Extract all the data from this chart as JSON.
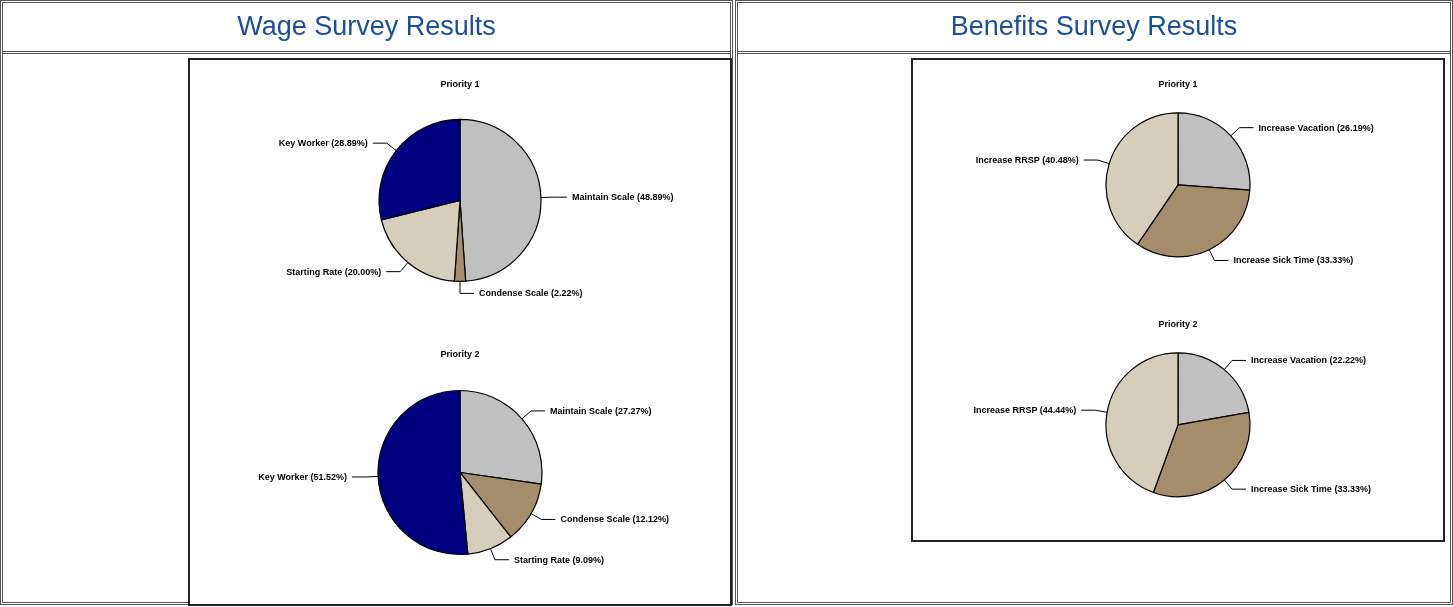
{
  "chart_data": [
    {
      "type": "pie",
      "title": "Wage Survey Results",
      "subtitle": "Priority 1",
      "categories": [
        "Maintain Scale",
        "Condense Scale",
        "Starting Rate",
        "Key Worker"
      ],
      "values": [
        48.89,
        2.22,
        20.0,
        28.89
      ],
      "colors": [
        "#c0c0c0",
        "#a38d6b",
        "#d6cdbb",
        "#000080"
      ],
      "value_labels": [
        "(48.89%)",
        "(2.22%)",
        "(20.00%)",
        "(28.89%)"
      ]
    },
    {
      "type": "pie",
      "subtitle": "Priority 2",
      "categories": [
        "Maintain Scale",
        "Condense Scale",
        "Starting Rate",
        "Key Worker"
      ],
      "values": [
        27.27,
        12.12,
        9.09,
        51.52
      ],
      "colors": [
        "#c0c0c0",
        "#a38d6b",
        "#d6cdbb",
        "#000080"
      ],
      "value_labels": [
        "(27.27%)",
        "(12.12%)",
        "(9.09%)",
        "(51.52%)"
      ]
    },
    {
      "type": "pie",
      "title": "Benefits Survey Results",
      "subtitle": "Priority 1",
      "categories": [
        "Increase Vacation",
        "Increase Sick Time",
        "Increase RRSP"
      ],
      "values": [
        26.19,
        33.33,
        40.48
      ],
      "colors": [
        "#c0c0c0",
        "#a38d6b",
        "#d6cdbb"
      ],
      "value_labels": [
        "(26.19%)",
        "(33.33%)",
        "(40.48%)"
      ]
    },
    {
      "type": "pie",
      "subtitle": "Priority 2",
      "categories": [
        "Increase Vacation",
        "Increase Sick Time",
        "Increase RRSP"
      ],
      "values": [
        22.22,
        33.33,
        44.44
      ],
      "colors": [
        "#c0c0c0",
        "#a38d6b",
        "#d6cdbb"
      ],
      "value_labels": [
        "(22.22%)",
        "(33.33%)",
        "(44.44%)"
      ]
    }
  ]
}
